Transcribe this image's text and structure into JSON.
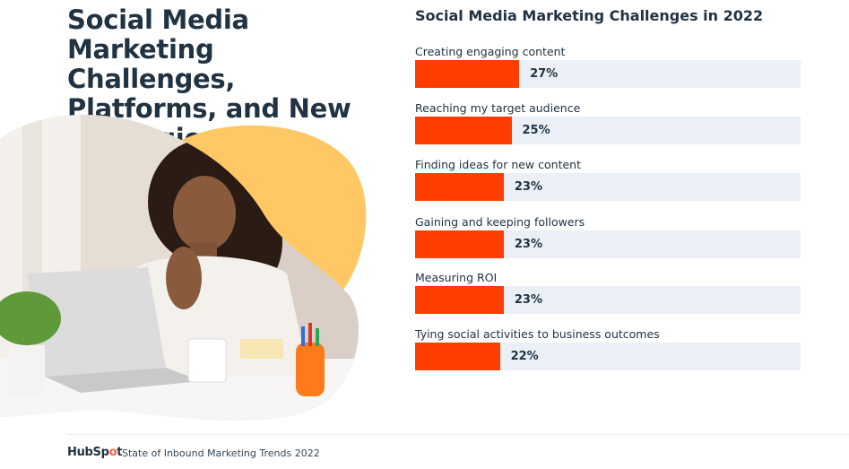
{
  "headline": "Social Media Marketing Challenges, Platforms, and New Strategies",
  "footer": {
    "brand_prefix": "HubSp",
    "brand_accent": "o",
    "brand_suffix": "t",
    "text": "State of Inbound Marketing Trends 2022"
  },
  "colors": {
    "bar": "#ff3d00",
    "track": "#eaf0f6",
    "blob": "#ffc864",
    "text": "#213343"
  },
  "chart_data": {
    "type": "bar",
    "orientation": "horizontal",
    "title": "Social Media Marketing Challenges in 2022",
    "categories": [
      "Creating engaging content",
      "Reaching my target audience",
      "Finding ideas for new content",
      "Gaining and keeping followers",
      "Measuring ROI",
      "Tying social activities to business outcomes"
    ],
    "values": [
      27,
      25,
      23,
      23,
      23,
      22
    ],
    "value_labels": [
      "27%",
      "25%",
      "23%",
      "23%",
      "23%",
      "22%"
    ],
    "xlim": [
      0,
      100
    ],
    "grid": false
  }
}
